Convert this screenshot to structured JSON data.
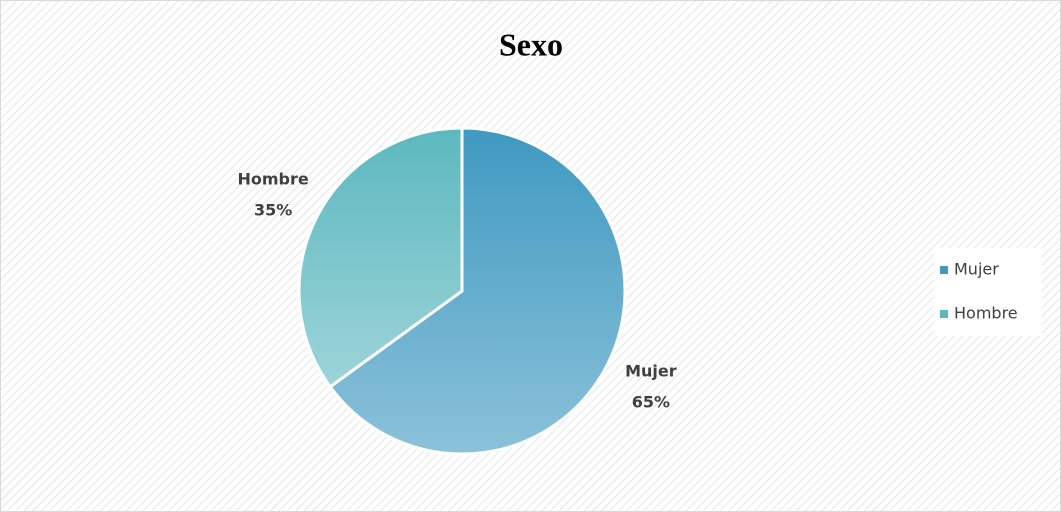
{
  "chart_data": {
    "type": "pie",
    "title": "Sexo",
    "categories": [
      "Mujer",
      "Hombre"
    ],
    "values": [
      65,
      35
    ],
    "value_labels": [
      "65%",
      "35%"
    ],
    "colors": [
      "#3f99c1",
      "#5cb8bf"
    ],
    "legend": "right"
  }
}
